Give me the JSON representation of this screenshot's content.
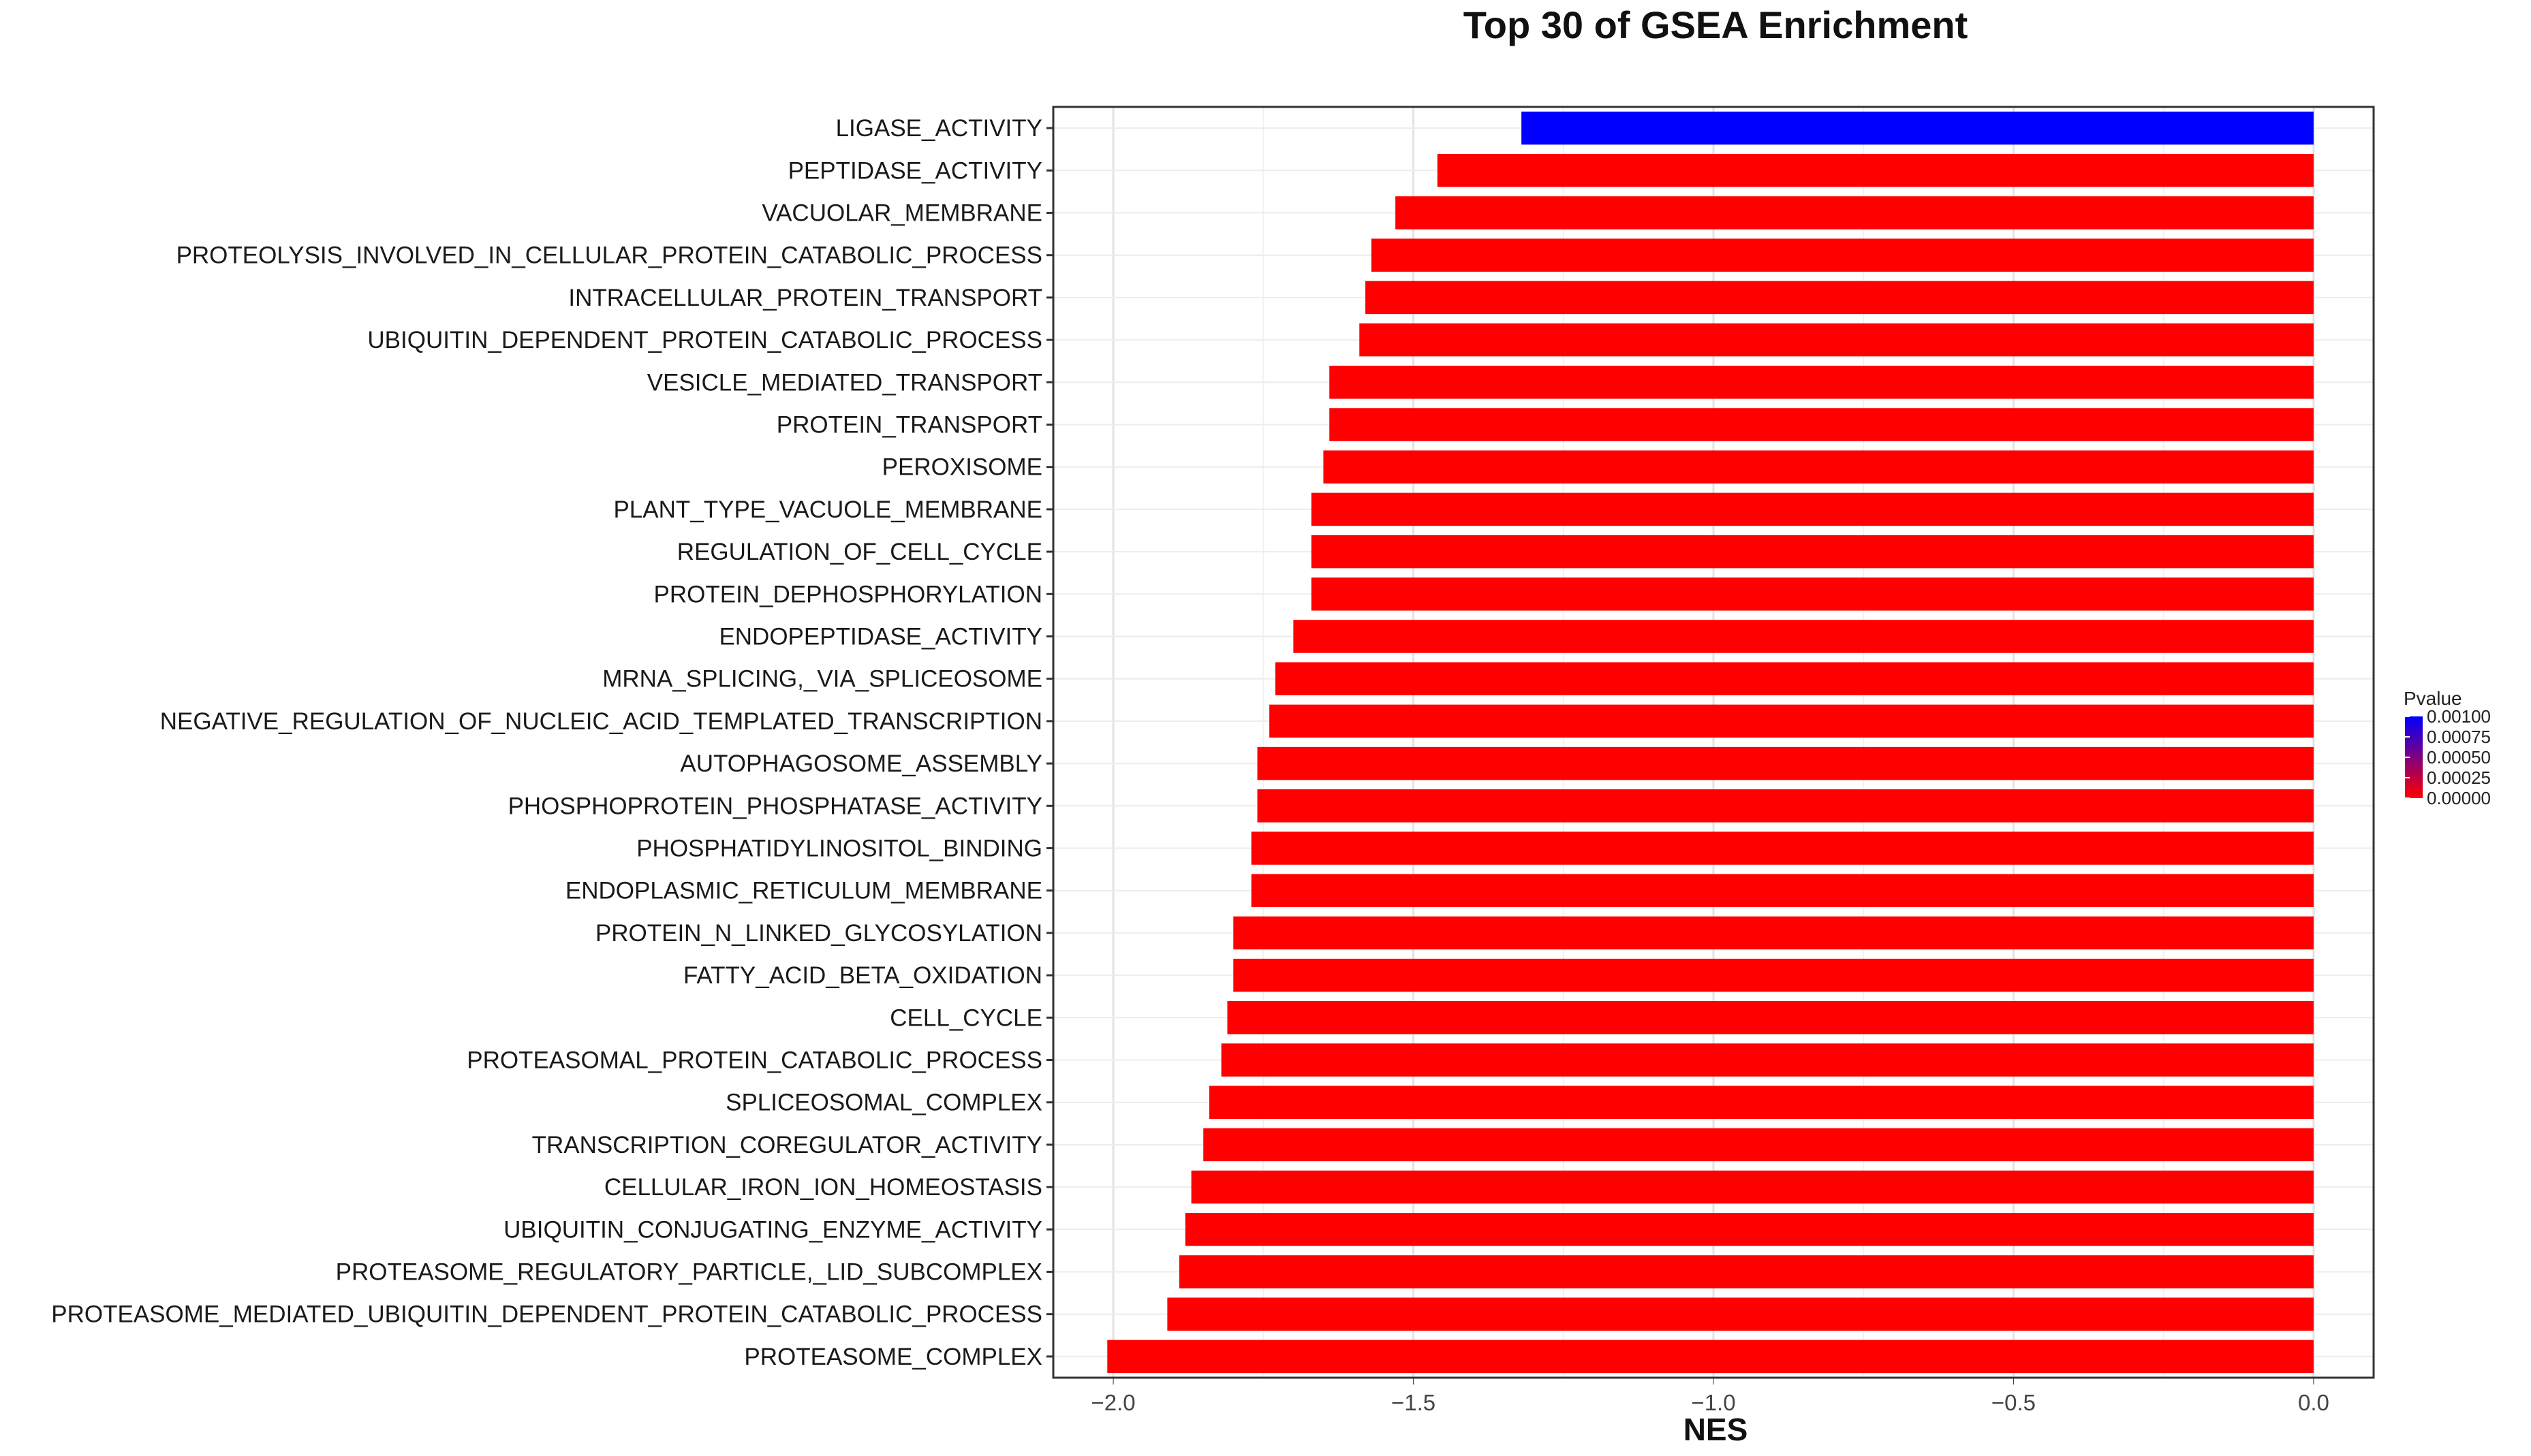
{
  "chart_data": {
    "type": "bar",
    "orientation": "horizontal",
    "title": "Top 30 of GSEA Enrichment",
    "xlabel": "NES",
    "ylabel": "",
    "xlim": [
      -2.1,
      0.1
    ],
    "xticks": [
      -2.0,
      -1.5,
      -1.0,
      -0.5,
      0.0
    ],
    "xtick_labels": [
      "−2.0",
      "−1.5",
      "−1.0",
      "−0.5",
      "0.0"
    ],
    "grid": true,
    "categories": [
      "LIGASE_ACTIVITY",
      "PEPTIDASE_ACTIVITY",
      "VACUOLAR_MEMBRANE",
      "PROTEOLYSIS_INVOLVED_IN_CELLULAR_PROTEIN_CATABOLIC_PROCESS",
      "INTRACELLULAR_PROTEIN_TRANSPORT",
      "UBIQUITIN_DEPENDENT_PROTEIN_CATABOLIC_PROCESS",
      "VESICLE_MEDIATED_TRANSPORT",
      "PROTEIN_TRANSPORT",
      "PEROXISOME",
      "PLANT_TYPE_VACUOLE_MEMBRANE",
      "REGULATION_OF_CELL_CYCLE",
      "PROTEIN_DEPHOSPHORYLATION",
      "ENDOPEPTIDASE_ACTIVITY",
      "MRNA_SPLICING,_VIA_SPLICEOSOME",
      "NEGATIVE_REGULATION_OF_NUCLEIC_ACID_TEMPLATED_TRANSCRIPTION",
      "AUTOPHAGOSOME_ASSEMBLY",
      "PHOSPHOPROTEIN_PHOSPHATASE_ACTIVITY",
      "PHOSPHATIDYLINOSITOL_BINDING",
      "ENDOPLASMIC_RETICULUM_MEMBRANE",
      "PROTEIN_N_LINKED_GLYCOSYLATION",
      "FATTY_ACID_BETA_OXIDATION",
      "CELL_CYCLE",
      "PROTEASOMAL_PROTEIN_CATABOLIC_PROCESS",
      "SPLICEOSOMAL_COMPLEX",
      "TRANSCRIPTION_COREGULATOR_ACTIVITY",
      "CELLULAR_IRON_ION_HOMEOSTASIS",
      "UBIQUITIN_CONJUGATING_ENZYME_ACTIVITY",
      "PROTEASOME_REGULATORY_PARTICLE,_LID_SUBCOMPLEX",
      "PROTEASOME_MEDIATED_UBIQUITIN_DEPENDENT_PROTEIN_CATABOLIC_PROCESS",
      "PROTEASOME_COMPLEX"
    ],
    "values": [
      -1.32,
      -1.46,
      -1.53,
      -1.57,
      -1.58,
      -1.59,
      -1.64,
      -1.64,
      -1.65,
      -1.67,
      -1.67,
      -1.67,
      -1.7,
      -1.73,
      -1.74,
      -1.76,
      -1.76,
      -1.77,
      -1.77,
      -1.8,
      -1.8,
      -1.81,
      -1.82,
      -1.84,
      -1.85,
      -1.87,
      -1.88,
      -1.89,
      -1.91,
      -2.01
    ],
    "pvalues": [
      0.001,
      0.0,
      0.0,
      0.0,
      0.0,
      0.0,
      0.0,
      0.0,
      0.0,
      0.0,
      0.0,
      0.0,
      0.0,
      0.0,
      0.0,
      0.0,
      0.0,
      0.0,
      0.0,
      0.0,
      0.0,
      0.0,
      0.0,
      0.0,
      0.0,
      0.0,
      0.0,
      0.0,
      0.0,
      0.0
    ],
    "legend": {
      "title": "Pvalue",
      "placement": "right",
      "ticks": [
        "0.00100",
        "0.00075",
        "0.00050",
        "0.00025",
        "0.00000"
      ],
      "range": [
        0.0,
        0.001
      ],
      "color_low": "#ff0000",
      "color_high": "#0000ff"
    }
  }
}
